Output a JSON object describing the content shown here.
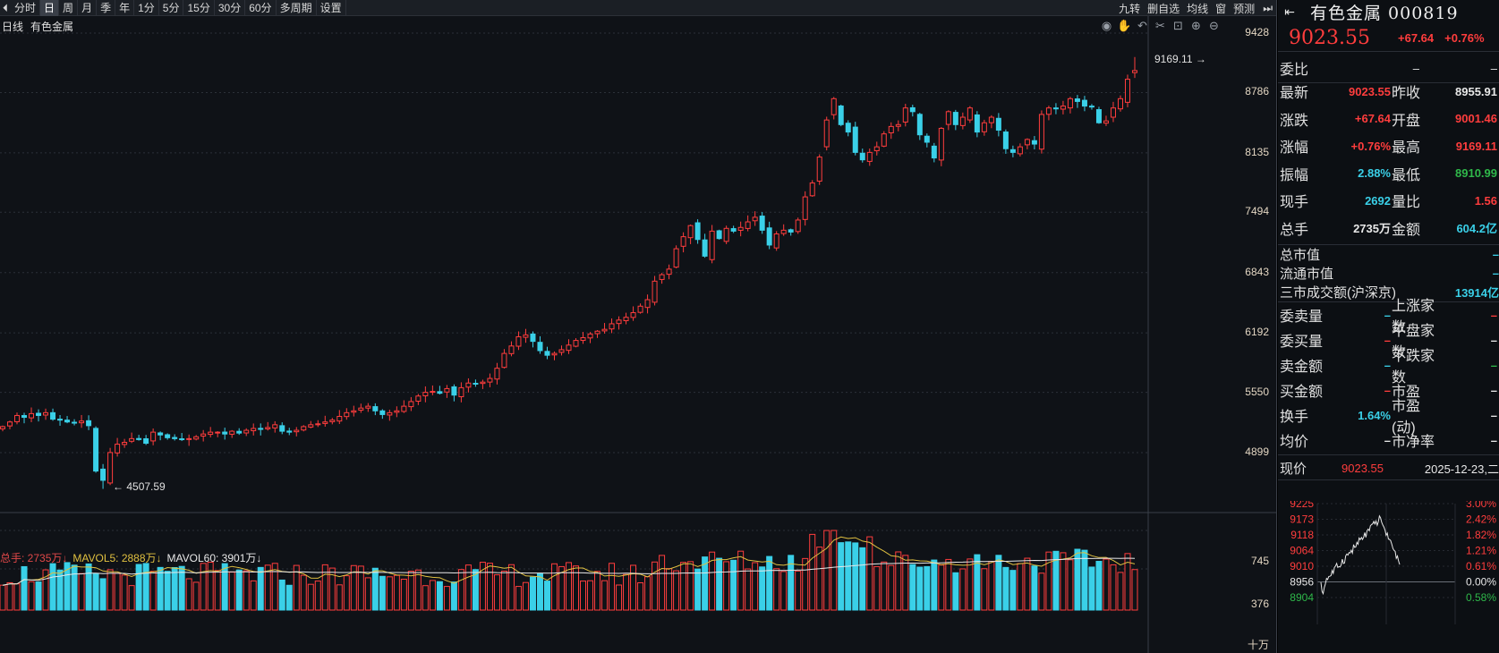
{
  "toolbar": {
    "nav_prev": "⏴",
    "periods": [
      "分时",
      "日",
      "周",
      "月",
      "季",
      "年",
      "1分",
      "5分",
      "15分",
      "30分",
      "60分",
      "多周期",
      "设置"
    ],
    "active_period": "日",
    "right_tools": [
      "九转",
      "删自选",
      "均线",
      "窗",
      "预测"
    ]
  },
  "chart": {
    "label_period": "日线",
    "label_name": "有色金属",
    "icons": [
      "eye-icon",
      "hand-icon",
      "undo-icon",
      "cut-icon",
      "lock-icon",
      "zoom-in-icon",
      "zoom-out-icon"
    ],
    "price_axis": [
      "9428",
      "8786",
      "8135",
      "7494",
      "6843",
      "6192",
      "5550",
      "4899"
    ],
    "high_annotation": "9169.11",
    "low_annotation": "4507.59",
    "vol_axis": [
      "745",
      "376"
    ],
    "vol_unit": "十万",
    "vol_legend": {
      "total": "总手: 2735万↓",
      "mavol5": "MAVOL5: 2888万↓",
      "mavol60": "MAVOL60: 3901万↓"
    }
  },
  "chart_data": {
    "type": "candlestick",
    "price_axis_labels": [
      9428,
      8786,
      8135,
      7494,
      6843,
      6192,
      5550,
      4899
    ],
    "highest": 9169.11,
    "lowest": 4507.59,
    "last_close": 9023.55,
    "closes": [
      5180,
      5230,
      5300,
      5280,
      5320,
      5300,
      5330,
      5260,
      5250,
      5230,
      5220,
      5240,
      5190,
      4700,
      4600,
      4900,
      4990,
      5010,
      5050,
      5040,
      5000,
      5120,
      5090,
      5060,
      5050,
      5040,
      5050,
      5070,
      5100,
      5120,
      5120,
      5100,
      5130,
      5110,
      5140,
      5160,
      5150,
      5170,
      5200,
      5130,
      5120,
      5140,
      5180,
      5200,
      5210,
      5230,
      5250,
      5290,
      5330,
      5350,
      5380,
      5400,
      5350,
      5310,
      5330,
      5350,
      5400,
      5450,
      5510,
      5550,
      5560,
      5540,
      5590,
      5520,
      5600,
      5650,
      5640,
      5660,
      5700,
      5810,
      5970,
      6050,
      6150,
      6170,
      6100,
      6000,
      5950,
      5970,
      6010,
      6060,
      6110,
      6140,
      6180,
      6210,
      6230,
      6290,
      6330,
      6360,
      6410,
      6480,
      6550,
      6750,
      6820,
      6880,
      7100,
      7230,
      7350,
      7200,
      7020,
      7290,
      7210,
      7320,
      7290,
      7330,
      7390,
      7440,
      7300,
      7140,
      7260,
      7300,
      7280,
      7410,
      7660,
      7810,
      8090,
      8490,
      8720,
      8440,
      8360,
      8140,
      8060,
      8140,
      8200,
      8340,
      8420,
      8440,
      8620,
      8580,
      8330,
      8250,
      8080,
      8400,
      8580,
      8440,
      8520,
      8620,
      8360,
      8460,
      8520,
      8380,
      8180,
      8140,
      8200,
      8280,
      8230,
      8550,
      8620,
      8610,
      8640,
      8720,
      8690,
      8640,
      8630,
      8460,
      8480,
      8620,
      8720,
      8930,
      9023.55
    ],
    "volume_axis_labels": [
      745,
      376
    ],
    "volume_unit": "十万",
    "mavol5": "2888万",
    "mavol60": "3901万",
    "total_volume": "2735万"
  },
  "panel": {
    "title": "有色金属 000819",
    "price": "9023.55",
    "change": "+67.64",
    "change_pct": "+0.76%",
    "weibi_label": "委比",
    "weibi_v1": "–",
    "weibi_v2": "–",
    "rows": [
      {
        "l1": "最新",
        "v1": "9023.55",
        "c1": "red",
        "l2": "昨收",
        "v2": "8955.91",
        "c2": "white"
      },
      {
        "l1": "涨跌",
        "v1": "+67.64",
        "c1": "red",
        "l2": "开盘",
        "v2": "9001.46",
        "c2": "red"
      },
      {
        "l1": "涨幅",
        "v1": "+0.76%",
        "c1": "red",
        "l2": "最高",
        "v2": "9169.11",
        "c2": "red"
      },
      {
        "l1": "振幅",
        "v1": "2.88%",
        "c1": "cyan",
        "l2": "最低",
        "v2": "8910.99",
        "c2": "green"
      },
      {
        "l1": "现手",
        "v1": "2692",
        "c1": "cyan",
        "l2": "量比",
        "v2": "1.56",
        "c2": "red"
      },
      {
        "l1": "总手",
        "v1": "2735万",
        "c1": "white",
        "l2": "金额",
        "v2": "604.2亿",
        "c2": "cyan"
      }
    ],
    "market_rows": [
      {
        "l": "总市值",
        "v": "–"
      },
      {
        "l": "流通市值",
        "v": "–"
      },
      {
        "l": "三市成交额(沪深京)",
        "v": "13914亿"
      }
    ],
    "order_rows": [
      {
        "l1": "委卖量",
        "v1": "–",
        "c1": "cyan",
        "l2": "上涨家数",
        "v2": "–",
        "c2": "red"
      },
      {
        "l1": "委买量",
        "v1": "–",
        "c1": "red",
        "l2": "平盘家数",
        "v2": "–",
        "c2": "white"
      },
      {
        "l1": "卖金额",
        "v1": "–",
        "c1": "cyan",
        "l2": "下跌家数",
        "v2": "–",
        "c2": "green"
      },
      {
        "l1": "买金额",
        "v1": "–",
        "c1": "red",
        "l2": "市盈",
        "v2": "–",
        "c2": "white"
      },
      {
        "l1": "换手",
        "v1": "1.64%",
        "c1": "cyan",
        "l2": "市盈(动)",
        "v2": "–",
        "c2": "white"
      },
      {
        "l1": "均价",
        "v1": "–",
        "c1": "white",
        "l2": "市净率",
        "v2": "–",
        "c2": "white"
      }
    ],
    "mini": {
      "label": "现价",
      "price": "9023.55",
      "date": "2025-12-23,二",
      "left_axis": [
        "9225",
        "9173",
        "9118",
        "9064",
        "9010",
        "8956",
        "8904"
      ],
      "right_axis": [
        "3.00%",
        "2.42%",
        "1.82%",
        "1.21%",
        "0.61%",
        "0.00%",
        "0.58%"
      ]
    }
  },
  "colors": {
    "up": "#ff3d3d",
    "down": "#3ad0e8",
    "background": "#0f1217",
    "ma5": "#e0c040",
    "ma60": "#e8e8e8"
  }
}
